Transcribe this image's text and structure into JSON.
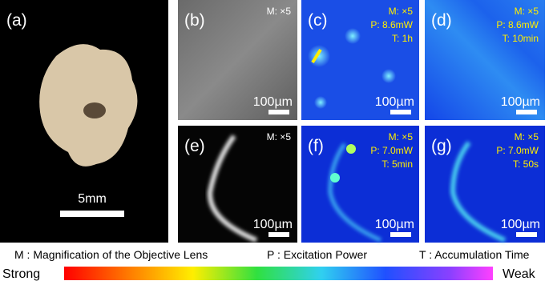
{
  "panels": [
    {
      "label": "(a)",
      "scale": "5mm"
    },
    {
      "label": "(b)",
      "info": [
        "M: ×5"
      ],
      "scale": "100µm"
    },
    {
      "label": "(c)",
      "info": [
        "M: ×5",
        "P: 8.6mW",
        "T: 1h"
      ],
      "scale": "100µm"
    },
    {
      "label": "(d)",
      "info": [
        "M: ×5",
        "P: 8.6mW",
        "T: 10min"
      ],
      "scale": "100µm"
    },
    {
      "label": "(e)",
      "info": [
        "M: ×5"
      ],
      "scale": "100µm"
    },
    {
      "label": "(f)",
      "info": [
        "M: ×5",
        "P: 7.0mW",
        "T: 5min"
      ],
      "scale": "100µm"
    },
    {
      "label": "(g)",
      "info": [
        "M: ×5",
        "P: 7.0mW",
        "T: 50s"
      ],
      "scale": "100µm"
    }
  ],
  "legend": {
    "m": "M : Magnification of the Objective Lens",
    "p": "P : Excitation Power",
    "t": "T : Accumulation Time"
  },
  "colorbar": {
    "low": "Strong",
    "high": "Weak"
  }
}
